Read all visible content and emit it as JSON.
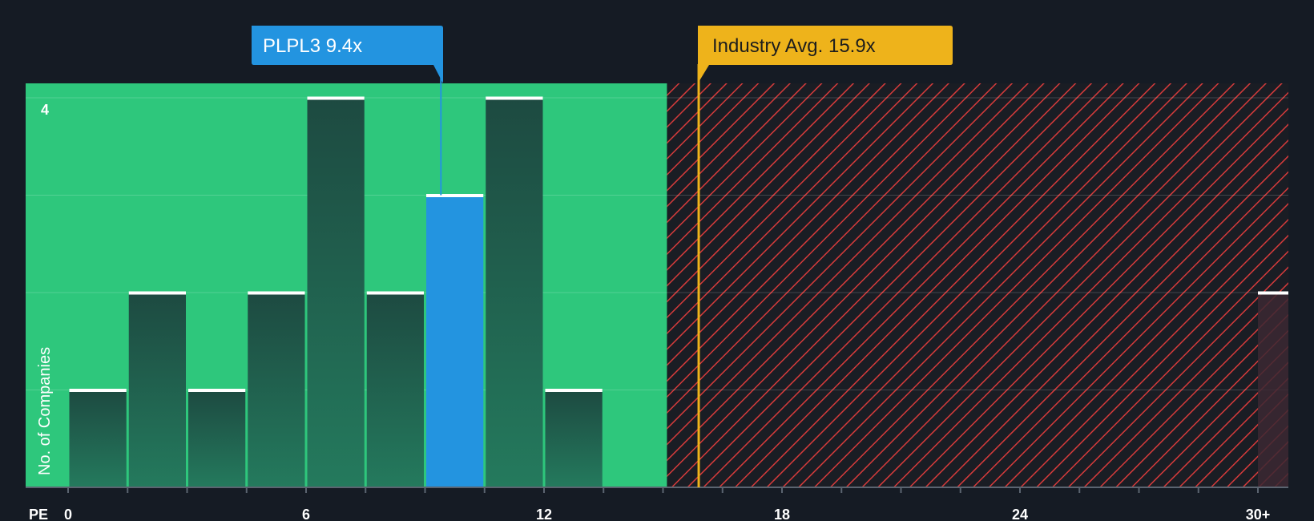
{
  "chart_data": {
    "type": "bar",
    "x_label": "PE",
    "y_label": "No. of Companies",
    "x_ticks": [
      0,
      6,
      12,
      18,
      24,
      "30+"
    ],
    "y_ticks": [
      4
    ],
    "xlim": [
      0,
      30
    ],
    "ylim": [
      0,
      4
    ],
    "grid": true,
    "bins": [
      {
        "x_start": 0,
        "x_end": 1.5,
        "count": 1,
        "highlight": false
      },
      {
        "x_start": 1.5,
        "x_end": 3,
        "count": 2,
        "highlight": false
      },
      {
        "x_start": 3,
        "x_end": 4.5,
        "count": 1,
        "highlight": false
      },
      {
        "x_start": 4.5,
        "x_end": 6,
        "count": 2,
        "highlight": false
      },
      {
        "x_start": 6,
        "x_end": 7.5,
        "count": 4,
        "highlight": false
      },
      {
        "x_start": 7.5,
        "x_end": 9,
        "count": 2,
        "highlight": false
      },
      {
        "x_start": 9,
        "x_end": 10.5,
        "count": 3,
        "highlight": true
      },
      {
        "x_start": 10.5,
        "x_end": 12,
        "count": 4,
        "highlight": false
      },
      {
        "x_start": 12,
        "x_end": 13.5,
        "count": 1,
        "highlight": false
      },
      {
        "x_start": 30,
        "x_end": 31,
        "count": 2,
        "highlight": false
      }
    ],
    "fair_zone_end": 15.1,
    "company": {
      "label": "PLPL3 9.4x",
      "value": 9.4
    },
    "industry": {
      "label": "Industry Avg. 15.9x",
      "value": 15.9
    },
    "colors": {
      "background": "#151b24",
      "fair_zone": "#2ec77c",
      "bar": "#1e4a3f",
      "highlight_bar": "#2394e0",
      "overvalued_hatch": "#d63b3b",
      "company_callout": "#2394e0",
      "industry_callout": "#eeb31b"
    }
  }
}
